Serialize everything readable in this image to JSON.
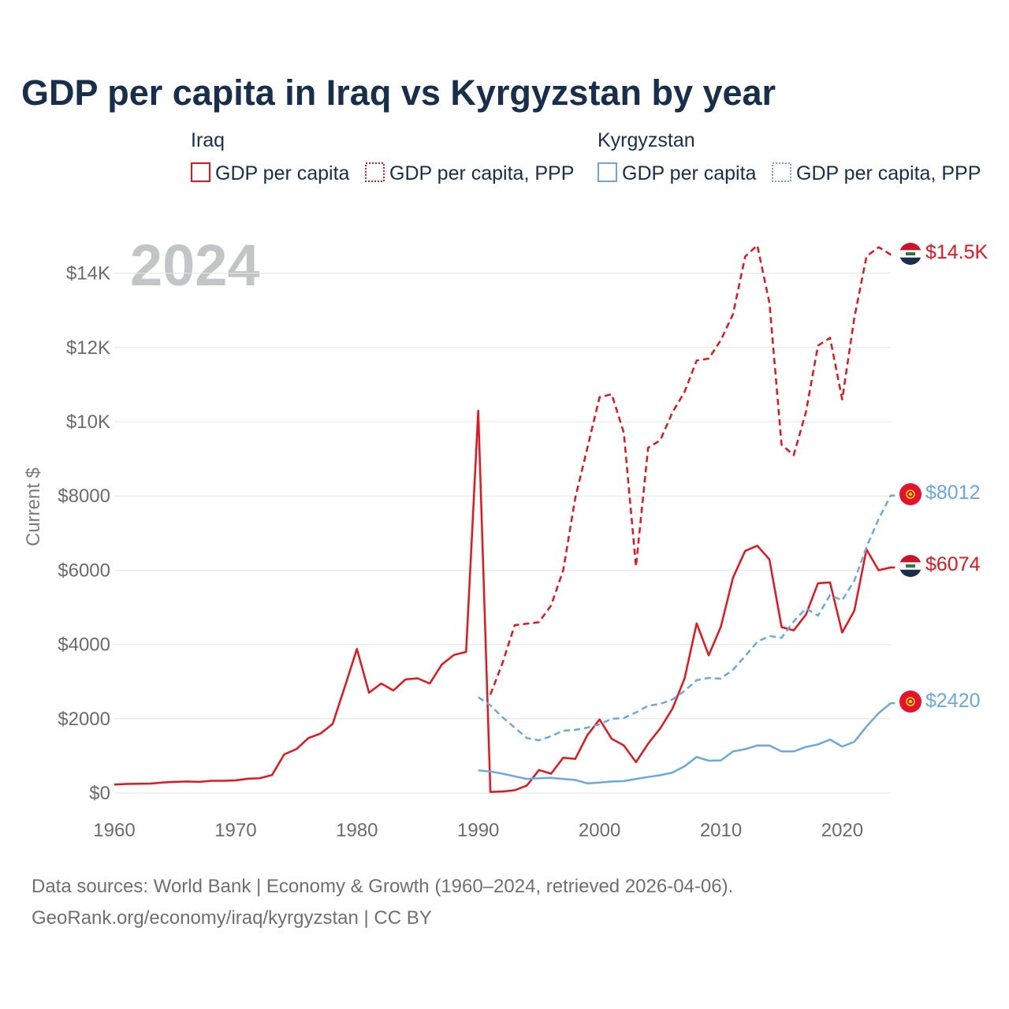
{
  "title": "GDP per capita in Iraq vs Kyrgyzstan by year",
  "year_watermark": "2024",
  "legend": {
    "groups": [
      {
        "country": "Iraq",
        "items": [
          {
            "label": "GDP per capita"
          },
          {
            "label": "GDP per capita, PPP"
          }
        ]
      },
      {
        "country": "Kyrgyzstan",
        "items": [
          {
            "label": "GDP per capita"
          },
          {
            "label": "GDP per capita, PPP"
          }
        ]
      }
    ]
  },
  "end_labels": {
    "iraq_ppp": "$14.5K",
    "kyrgyzstan_ppp": "$8012",
    "iraq_gdp": "$6074",
    "kyrgyzstan_gdp": "$2420"
  },
  "source_lines": [
    "Data sources: World Bank | Economy & Growth (1960–2024, retrieved 2026-04-06).",
    "GeoRank.org/economy/iraq/kyrgyzstan | CC BY"
  ],
  "colors": {
    "iraq": "#e8141b",
    "kyrgyzstan": "#6aa8e2",
    "title": "#172f4d",
    "grid": "#e6e6e6"
  },
  "chart_data": {
    "type": "line",
    "title": "GDP per capita in Iraq vs Kyrgyzstan by year",
    "xlabel": "",
    "ylabel": "Current $",
    "xlim": [
      1960,
      2024
    ],
    "ylim": [
      0,
      15000
    ],
    "x_ticks": [
      1960,
      1970,
      1980,
      1990,
      2000,
      2010,
      2020
    ],
    "y_ticks": [
      0,
      2000,
      4000,
      6000,
      8000,
      10000,
      12000,
      14000
    ],
    "y_tick_labels": [
      "$0",
      "$2000",
      "$4000",
      "$6000",
      "$8000",
      "$10K",
      "$12K",
      "$14K"
    ],
    "grid": true,
    "series": [
      {
        "name": "Iraq GDP per capita",
        "country": "Iraq",
        "style": "solid",
        "end_label_key": "iraq_gdp",
        "x": [
          1960,
          1961,
          1962,
          1963,
          1964,
          1965,
          1966,
          1967,
          1968,
          1969,
          1970,
          1971,
          1972,
          1973,
          1974,
          1975,
          1976,
          1977,
          1978,
          1979,
          1980,
          1981,
          1982,
          1983,
          1984,
          1985,
          1986,
          1987,
          1988,
          1989,
          1990,
          1991,
          1992,
          1993,
          1994,
          1995,
          1996,
          1997,
          1998,
          1999,
          2000,
          2001,
          2002,
          2003,
          2004,
          2005,
          2006,
          2007,
          2008,
          2009,
          2010,
          2011,
          2012,
          2013,
          2014,
          2015,
          2016,
          2017,
          2018,
          2019,
          2020,
          2021,
          2022,
          2023,
          2024
        ],
        "values": [
          230,
          245,
          250,
          255,
          285,
          300,
          310,
          300,
          330,
          330,
          340,
          385,
          400,
          485,
          1040,
          1180,
          1480,
          1600,
          1860,
          2860,
          3880,
          2700,
          2950,
          2760,
          3060,
          3090,
          2950,
          3460,
          3720,
          3800,
          10300,
          30,
          40,
          75,
          200,
          620,
          520,
          950,
          920,
          1560,
          1980,
          1460,
          1280,
          830,
          1330,
          1740,
          2270,
          3080,
          4570,
          3710,
          4480,
          5800,
          6520,
          6660,
          6290,
          4470,
          4380,
          4800,
          5650,
          5670,
          4320,
          4910,
          6560,
          6000,
          6074
        ]
      },
      {
        "name": "Iraq GDP per capita, PPP",
        "country": "Iraq",
        "style": "dashed",
        "end_label_key": "iraq_ppp",
        "x": [
          1991,
          1992,
          1993,
          1994,
          1995,
          1996,
          1997,
          1998,
          1999,
          2000,
          2001,
          2002,
          2003,
          2004,
          2005,
          2006,
          2007,
          2008,
          2009,
          2010,
          2011,
          2012,
          2013,
          2014,
          2015,
          2016,
          2017,
          2018,
          2019,
          2020,
          2021,
          2022,
          2023,
          2024
        ],
        "values": [
          2650,
          3500,
          4520,
          4560,
          4600,
          5050,
          6000,
          7950,
          9300,
          10660,
          10740,
          9700,
          6100,
          9300,
          9500,
          10250,
          10800,
          11650,
          11700,
          12200,
          12900,
          14450,
          14750,
          13200,
          9380,
          9100,
          10250,
          12050,
          12260,
          10600,
          12800,
          14450,
          14700,
          14500
        ]
      },
      {
        "name": "Kyrgyzstan GDP per capita",
        "country": "Kyrgyzstan",
        "style": "solid",
        "end_label_key": "kyrgyzstan_gdp",
        "x": [
          1990,
          1991,
          1992,
          1993,
          1994,
          1995,
          1996,
          1997,
          1998,
          1999,
          2000,
          2001,
          2002,
          2003,
          2004,
          2005,
          2006,
          2007,
          2008,
          2009,
          2010,
          2011,
          2012,
          2013,
          2014,
          2015,
          2016,
          2017,
          2018,
          2019,
          2020,
          2021,
          2022,
          2023,
          2024
        ],
        "values": [
          610,
          580,
          520,
          450,
          380,
          400,
          410,
          380,
          350,
          260,
          280,
          310,
          320,
          380,
          430,
          480,
          550,
          720,
          970,
          870,
          880,
          1120,
          1180,
          1280,
          1280,
          1120,
          1120,
          1240,
          1310,
          1440,
          1250,
          1380,
          1790,
          2150,
          2420
        ]
      },
      {
        "name": "Kyrgyzstan GDP per capita, PPP",
        "country": "Kyrgyzstan",
        "style": "dashed",
        "end_label_key": "kyrgyzstan_ppp",
        "x": [
          1990,
          1991,
          1992,
          1993,
          1994,
          1995,
          1996,
          1997,
          1998,
          1999,
          2000,
          2001,
          2002,
          2003,
          2004,
          2005,
          2006,
          2007,
          2008,
          2009,
          2010,
          2011,
          2012,
          2013,
          2014,
          2015,
          2016,
          2017,
          2018,
          2019,
          2020,
          2021,
          2022,
          2023,
          2024
        ],
        "values": [
          2580,
          2360,
          2040,
          1760,
          1480,
          1420,
          1530,
          1680,
          1700,
          1760,
          1850,
          2000,
          2020,
          2170,
          2350,
          2400,
          2520,
          2750,
          3040,
          3100,
          3080,
          3320,
          3690,
          4070,
          4230,
          4180,
          4620,
          4970,
          4780,
          5330,
          5190,
          5720,
          6620,
          7380,
          8012
        ]
      }
    ]
  }
}
